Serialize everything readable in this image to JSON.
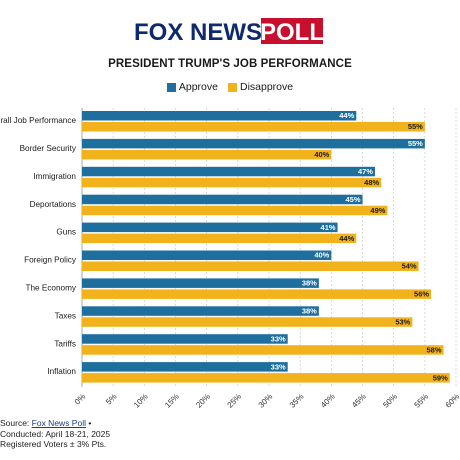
{
  "logo": {
    "fox_text": "FOX NEWS",
    "poll_text": "POLL",
    "colors": {
      "navy": "#0f2a6b",
      "red": "#c8102e"
    }
  },
  "chart_data": {
    "type": "bar",
    "orientation": "horizontal",
    "title": "PRESIDENT TRUMP'S JOB PERFORMANCE",
    "categories": [
      "Overall Job Performance",
      "Border Security",
      "Immigration",
      "Deportations",
      "Guns",
      "Foreign Policy",
      "The Economy",
      "Taxes",
      "Tariffs",
      "Inflation"
    ],
    "series": [
      {
        "name": "Approve",
        "color": "#1e6e9e",
        "values": [
          44,
          55,
          47,
          45,
          41,
          40,
          38,
          38,
          33,
          33
        ]
      },
      {
        "name": "Disapprove",
        "color": "#f2b21c",
        "values": [
          55,
          40,
          48,
          49,
          44,
          54,
          56,
          53,
          58,
          59
        ]
      }
    ],
    "xlim": [
      0,
      60
    ],
    "x_ticks": [
      "0%",
      "5%",
      "10%",
      "15%",
      "20%",
      "25%",
      "30%",
      "35%",
      "40%",
      "45%",
      "50%",
      "55%",
      "60%"
    ],
    "value_suffix": "%",
    "grid": "vertical dashed",
    "legend_position": "top-center"
  },
  "source": {
    "label": "Source: ",
    "link_text": "Fox News Poll",
    "label_suffix": " •",
    "conducted": "Conducted: April 18-21, 2025",
    "voters": "Registered Voters ± 3% Pts."
  }
}
